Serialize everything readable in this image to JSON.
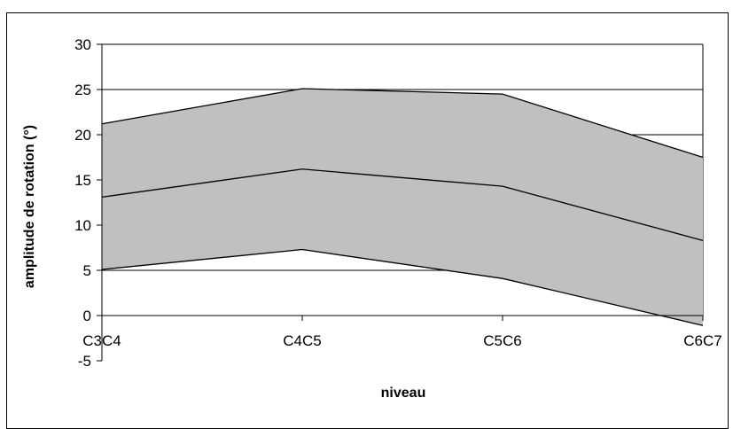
{
  "chart_data": {
    "type": "area",
    "title": "",
    "xlabel": "niveau",
    "ylabel": "amplitude de rotation (°)",
    "categories": [
      "C3C4",
      "C4C5",
      "C5C6",
      "C6C7"
    ],
    "ylim": [
      -5,
      30
    ],
    "yticks": [
      -5,
      0,
      5,
      10,
      15,
      20,
      25,
      30
    ],
    "grid": true,
    "legend": "none",
    "series": [
      {
        "values": [
          21.2,
          25.1,
          24.5,
          17.5
        ]
      },
      {
        "values": [
          13.1,
          16.2,
          14.3,
          8.3
        ]
      },
      {
        "values": [
          5.1,
          7.3,
          4.1,
          -1.1
        ]
      }
    ],
    "colors": {
      "band_fill": "#c0c0c0",
      "line": "#000000",
      "grid": "#000000"
    }
  }
}
